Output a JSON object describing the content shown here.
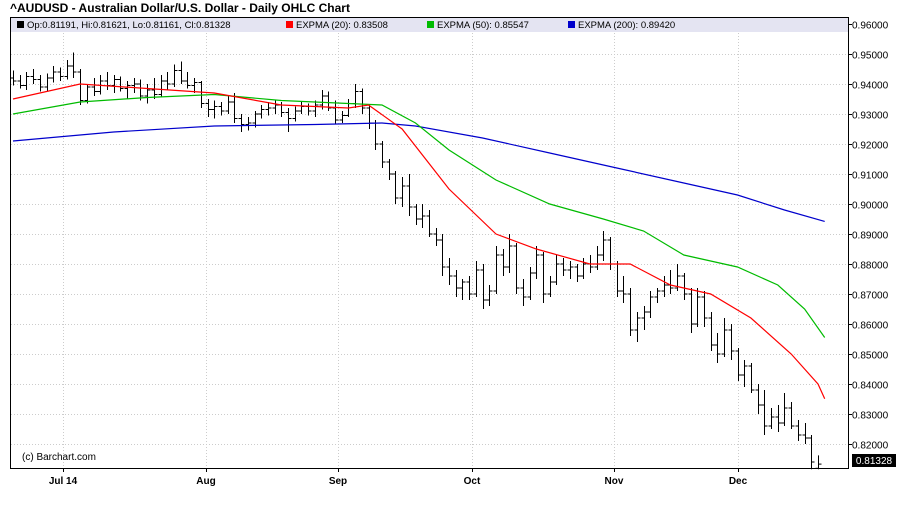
{
  "chart_data": {
    "type": "ohlc",
    "title": "^AUDUSD - Australian Dollar/U.S. Dollar - Daily OHLC Chart",
    "credit": "(c) Barchart.com",
    "last_price_label": "0.81328",
    "grid": true,
    "y_axis": {
      "side": "right",
      "ylim": [
        0.812,
        0.962
      ],
      "ticks": [
        "0.82000",
        "0.83000",
        "0.84000",
        "0.85000",
        "0.86000",
        "0.87000",
        "0.88000",
        "0.89000",
        "0.90000",
        "0.91000",
        "0.92000",
        "0.93000",
        "0.94000",
        "0.95000",
        "0.96000"
      ]
    },
    "x_axis": {
      "labels": [
        "Jul 14",
        "Aug",
        "Sep",
        "Oct",
        "Nov",
        "Dec"
      ]
    },
    "legend": [
      {
        "text": "Op:0.81191, Hi:0.81621, Lo:0.81161, Cl:0.81328",
        "color": "#000000"
      },
      {
        "text": "EXPMA (20): 0.83508",
        "color": "#ff0000"
      },
      {
        "text": "EXPMA (50): 0.85547",
        "color": "#00bb00"
      },
      {
        "text": "EXPMA (200): 0.89420",
        "color": "#0000cc"
      }
    ],
    "ohlc": [
      [
        0.942,
        0.9445,
        0.9395,
        0.941
      ],
      [
        0.941,
        0.943,
        0.9385,
        0.9395
      ],
      [
        0.9395,
        0.944,
        0.938,
        0.9425
      ],
      [
        0.9425,
        0.945,
        0.94,
        0.9415
      ],
      [
        0.9415,
        0.943,
        0.9375,
        0.939
      ],
      [
        0.939,
        0.9435,
        0.9375,
        0.942
      ],
      [
        0.942,
        0.946,
        0.9405,
        0.944
      ],
      [
        0.944,
        0.9455,
        0.941,
        0.9425
      ],
      [
        0.9425,
        0.948,
        0.9415,
        0.946
      ],
      [
        0.946,
        0.9505,
        0.942,
        0.944
      ],
      [
        0.944,
        0.945,
        0.933,
        0.9345
      ],
      [
        0.9345,
        0.94,
        0.9335,
        0.939
      ],
      [
        0.939,
        0.942,
        0.936,
        0.9375
      ],
      [
        0.9375,
        0.943,
        0.9365,
        0.941
      ],
      [
        0.941,
        0.944,
        0.938,
        0.9395
      ],
      [
        0.9395,
        0.943,
        0.937,
        0.9415
      ],
      [
        0.9415,
        0.9425,
        0.9375,
        0.9385
      ],
      [
        0.9385,
        0.941,
        0.935,
        0.9395
      ],
      [
        0.9395,
        0.942,
        0.937,
        0.94
      ],
      [
        0.94,
        0.9415,
        0.9345,
        0.936
      ],
      [
        0.936,
        0.94,
        0.9335,
        0.938
      ],
      [
        0.938,
        0.942,
        0.935,
        0.9365
      ],
      [
        0.9365,
        0.943,
        0.9355,
        0.941
      ],
      [
        0.941,
        0.944,
        0.938,
        0.94
      ],
      [
        0.94,
        0.9465,
        0.939,
        0.9445
      ],
      [
        0.9445,
        0.9475,
        0.94,
        0.941
      ],
      [
        0.941,
        0.944,
        0.9385,
        0.9395
      ],
      [
        0.9395,
        0.942,
        0.937,
        0.9405
      ],
      [
        0.9405,
        0.941,
        0.932,
        0.9335
      ],
      [
        0.9335,
        0.935,
        0.929,
        0.9315
      ],
      [
        0.9315,
        0.9345,
        0.9285,
        0.9325
      ],
      [
        0.9325,
        0.934,
        0.9295,
        0.931
      ],
      [
        0.931,
        0.936,
        0.93,
        0.934
      ],
      [
        0.934,
        0.937,
        0.927,
        0.9285
      ],
      [
        0.9285,
        0.93,
        0.924,
        0.9265
      ],
      [
        0.9265,
        0.929,
        0.9245,
        0.927
      ],
      [
        0.927,
        0.931,
        0.9255,
        0.93
      ],
      [
        0.93,
        0.933,
        0.9285,
        0.9315
      ],
      [
        0.9315,
        0.934,
        0.9295,
        0.932
      ],
      [
        0.932,
        0.9345,
        0.93,
        0.933
      ],
      [
        0.933,
        0.934,
        0.929,
        0.9305
      ],
      [
        0.9305,
        0.932,
        0.924,
        0.9285
      ],
      [
        0.9285,
        0.9325,
        0.9275,
        0.931
      ],
      [
        0.931,
        0.934,
        0.93,
        0.9325
      ],
      [
        0.9325,
        0.9335,
        0.9295,
        0.931
      ],
      [
        0.931,
        0.9345,
        0.929,
        0.933
      ],
      [
        0.933,
        0.938,
        0.9315,
        0.936
      ],
      [
        0.936,
        0.9375,
        0.931,
        0.932
      ],
      [
        0.932,
        0.9345,
        0.9265,
        0.928
      ],
      [
        0.928,
        0.931,
        0.927,
        0.9295
      ],
      [
        0.9295,
        0.935,
        0.929,
        0.9335
      ],
      [
        0.9335,
        0.94,
        0.932,
        0.9375
      ],
      [
        0.9375,
        0.9385,
        0.93,
        0.932
      ],
      [
        0.932,
        0.933,
        0.925,
        0.927
      ],
      [
        0.927,
        0.928,
        0.918,
        0.92
      ],
      [
        0.92,
        0.921,
        0.912,
        0.914
      ],
      [
        0.914,
        0.915,
        0.908,
        0.91
      ],
      [
        0.91,
        0.911,
        0.9,
        0.902
      ],
      [
        0.902,
        0.909,
        0.899,
        0.906
      ],
      [
        0.906,
        0.91,
        0.896,
        0.899
      ],
      [
        0.899,
        0.9,
        0.893,
        0.895
      ],
      [
        0.895,
        0.9,
        0.892,
        0.896
      ],
      [
        0.896,
        0.898,
        0.889,
        0.89
      ],
      [
        0.89,
        0.892,
        0.886,
        0.888
      ],
      [
        0.888,
        0.89,
        0.876,
        0.879
      ],
      [
        0.879,
        0.882,
        0.873,
        0.876
      ],
      [
        0.876,
        0.878,
        0.869,
        0.872
      ],
      [
        0.872,
        0.875,
        0.868,
        0.874
      ],
      [
        0.874,
        0.876,
        0.868,
        0.87
      ],
      [
        0.87,
        0.881,
        0.869,
        0.878
      ],
      [
        0.878,
        0.88,
        0.865,
        0.868
      ],
      [
        0.868,
        0.873,
        0.866,
        0.871
      ],
      [
        0.871,
        0.886,
        0.87,
        0.883
      ],
      [
        0.883,
        0.885,
        0.876,
        0.879
      ],
      [
        0.879,
        0.89,
        0.877,
        0.886
      ],
      [
        0.886,
        0.887,
        0.87,
        0.872
      ],
      [
        0.872,
        0.875,
        0.866,
        0.869
      ],
      [
        0.869,
        0.879,
        0.868,
        0.877
      ],
      [
        0.877,
        0.886,
        0.875,
        0.883
      ],
      [
        0.883,
        0.884,
        0.867,
        0.87
      ],
      [
        0.87,
        0.876,
        0.869,
        0.874
      ],
      [
        0.874,
        0.883,
        0.873,
        0.88
      ],
      [
        0.88,
        0.882,
        0.876,
        0.878
      ],
      [
        0.878,
        0.881,
        0.875,
        0.879
      ],
      [
        0.879,
        0.88,
        0.874,
        0.876
      ],
      [
        0.876,
        0.882,
        0.875,
        0.88
      ],
      [
        0.88,
        0.883,
        0.877,
        0.879
      ],
      [
        0.879,
        0.886,
        0.878,
        0.883
      ],
      [
        0.883,
        0.891,
        0.881,
        0.888
      ],
      [
        0.888,
        0.889,
        0.878,
        0.88
      ],
      [
        0.88,
        0.881,
        0.869,
        0.871
      ],
      [
        0.871,
        0.876,
        0.867,
        0.87
      ],
      [
        0.87,
        0.872,
        0.856,
        0.858
      ],
      [
        0.858,
        0.864,
        0.854,
        0.862
      ],
      [
        0.862,
        0.866,
        0.858,
        0.864
      ],
      [
        0.864,
        0.871,
        0.862,
        0.869
      ],
      [
        0.869,
        0.872,
        0.867,
        0.871
      ],
      [
        0.871,
        0.876,
        0.869,
        0.873
      ],
      [
        0.873,
        0.878,
        0.87,
        0.872
      ],
      [
        0.872,
        0.88,
        0.871,
        0.876
      ],
      [
        0.876,
        0.877,
        0.868,
        0.87
      ],
      [
        0.87,
        0.872,
        0.857,
        0.86
      ],
      [
        0.86,
        0.872,
        0.859,
        0.869
      ],
      [
        0.869,
        0.871,
        0.859,
        0.862
      ],
      [
        0.862,
        0.864,
        0.851,
        0.853
      ],
      [
        0.853,
        0.857,
        0.847,
        0.85
      ],
      [
        0.85,
        0.862,
        0.849,
        0.858
      ],
      [
        0.858,
        0.86,
        0.848,
        0.851
      ],
      [
        0.851,
        0.852,
        0.841,
        0.843
      ],
      [
        0.843,
        0.848,
        0.839,
        0.846
      ],
      [
        0.846,
        0.847,
        0.837,
        0.838
      ],
      [
        0.838,
        0.84,
        0.83,
        0.833
      ],
      [
        0.833,
        0.838,
        0.823,
        0.826
      ],
      [
        0.826,
        0.832,
        0.825,
        0.829
      ],
      [
        0.829,
        0.833,
        0.824,
        0.827
      ],
      [
        0.827,
        0.837,
        0.826,
        0.832
      ],
      [
        0.832,
        0.834,
        0.825,
        0.826
      ],
      [
        0.826,
        0.828,
        0.821,
        0.823
      ],
      [
        0.823,
        0.827,
        0.82,
        0.822
      ],
      [
        0.822,
        0.823,
        0.8116,
        0.814
      ],
      [
        0.8119,
        0.8162,
        0.8116,
        0.8133
      ]
    ],
    "ema20": [
      [
        0,
        0.935
      ],
      [
        10,
        0.94
      ],
      [
        20,
        0.9385
      ],
      [
        30,
        0.937
      ],
      [
        40,
        0.933
      ],
      [
        50,
        0.932
      ],
      [
        53,
        0.933
      ],
      [
        58,
        0.925
      ],
      [
        65,
        0.905
      ],
      [
        72,
        0.89
      ],
      [
        78,
        0.885
      ],
      [
        86,
        0.88
      ],
      [
        92,
        0.88
      ],
      [
        98,
        0.873
      ],
      [
        104,
        0.87
      ],
      [
        110,
        0.862
      ],
      [
        116,
        0.85
      ],
      [
        120,
        0.84
      ],
      [
        121,
        0.8351
      ]
    ],
    "ema50": [
      [
        0,
        0.93
      ],
      [
        10,
        0.934
      ],
      [
        20,
        0.9355
      ],
      [
        30,
        0.9365
      ],
      [
        40,
        0.9345
      ],
      [
        50,
        0.9335
      ],
      [
        55,
        0.933
      ],
      [
        60,
        0.927
      ],
      [
        65,
        0.918
      ],
      [
        72,
        0.908
      ],
      [
        80,
        0.9
      ],
      [
        88,
        0.895
      ],
      [
        94,
        0.891
      ],
      [
        100,
        0.883
      ],
      [
        108,
        0.879
      ],
      [
        114,
        0.873
      ],
      [
        118,
        0.865
      ],
      [
        121,
        0.8555
      ]
    ],
    "ema200": [
      [
        0,
        0.921
      ],
      [
        15,
        0.924
      ],
      [
        30,
        0.926
      ],
      [
        45,
        0.9265
      ],
      [
        55,
        0.927
      ],
      [
        60,
        0.926
      ],
      [
        70,
        0.922
      ],
      [
        80,
        0.917
      ],
      [
        90,
        0.912
      ],
      [
        100,
        0.907
      ],
      [
        108,
        0.903
      ],
      [
        115,
        0.898
      ],
      [
        121,
        0.8942
      ]
    ]
  }
}
